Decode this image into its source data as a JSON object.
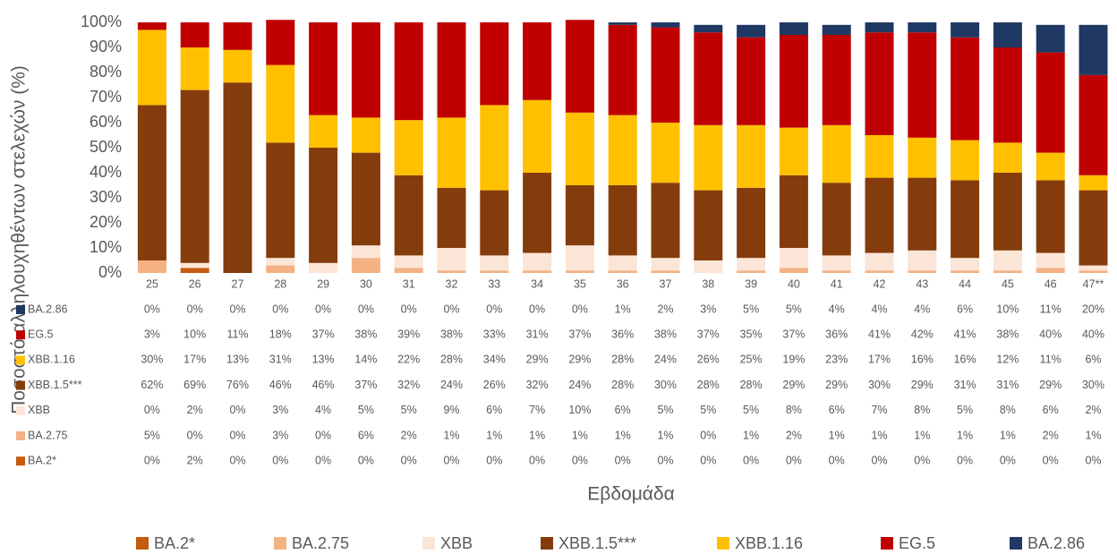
{
  "chart_data": {
    "type": "stacked-bar",
    "y_axis_label": "Ποσοστό αλληλουχηθέντων στελεχών (%)",
    "x_axis_label": "Εβδομάδα",
    "categories": [
      "25",
      "26",
      "27",
      "28",
      "29",
      "30",
      "31",
      "32",
      "33",
      "34",
      "35",
      "36",
      "37",
      "38",
      "39",
      "40",
      "41",
      "42",
      "43",
      "44",
      "45",
      "46",
      "47**"
    ],
    "ylim": [
      0,
      100
    ],
    "yticks": [
      {
        "value": 0,
        "label": "0%"
      },
      {
        "value": 10,
        "label": "10%"
      },
      {
        "value": 20,
        "label": "20%"
      },
      {
        "value": 30,
        "label": "30%"
      },
      {
        "value": 40,
        "label": "40%"
      },
      {
        "value": 50,
        "label": "50%"
      },
      {
        "value": 60,
        "label": "60%"
      },
      {
        "value": 70,
        "label": "70%"
      },
      {
        "value": 80,
        "label": "80%"
      },
      {
        "value": 90,
        "label": "90%"
      },
      {
        "value": 100,
        "label": "100%"
      }
    ],
    "series": [
      {
        "name": "BA.2*",
        "color": "#c55a11",
        "values": [
          0,
          2,
          0,
          0,
          0,
          0,
          0,
          0,
          0,
          0,
          0,
          0,
          0,
          0,
          0,
          0,
          0,
          0,
          0,
          0,
          0,
          0,
          0
        ],
        "value_labels": [
          "0%",
          "2%",
          "0%",
          "0%",
          "0%",
          "0%",
          "0%",
          "0%",
          "0%",
          "0%",
          "0%",
          "0%",
          "0%",
          "0%",
          "0%",
          "0%",
          "0%",
          "0%",
          "0%",
          "0%",
          "0%",
          "0%",
          "0%"
        ]
      },
      {
        "name": "BA.2.75",
        "color": "#f4b183",
        "values": [
          5,
          0,
          0,
          3,
          0,
          6,
          2,
          1,
          1,
          1,
          1,
          1,
          1,
          0,
          1,
          2,
          1,
          1,
          1,
          1,
          1,
          2,
          1
        ],
        "value_labels": [
          "5%",
          "0%",
          "0%",
          "3%",
          "0%",
          "6%",
          "2%",
          "1%",
          "1%",
          "1%",
          "1%",
          "1%",
          "1%",
          "0%",
          "1%",
          "2%",
          "1%",
          "1%",
          "1%",
          "1%",
          "1%",
          "2%",
          "1%"
        ]
      },
      {
        "name": "XBB",
        "color": "#fbe5d6",
        "values": [
          0,
          2,
          0,
          3,
          4,
          5,
          5,
          9,
          6,
          7,
          10,
          6,
          5,
          5,
          5,
          8,
          6,
          7,
          8,
          5,
          8,
          6,
          2
        ],
        "value_labels": [
          "0%",
          "2%",
          "0%",
          "3%",
          "4%",
          "5%",
          "5%",
          "9%",
          "6%",
          "7%",
          "10%",
          "6%",
          "5%",
          "5%",
          "5%",
          "8%",
          "6%",
          "7%",
          "8%",
          "5%",
          "8%",
          "6%",
          "2%"
        ]
      },
      {
        "name": "XBB.1.5***",
        "color": "#843c0c",
        "values": [
          62,
          69,
          76,
          46,
          46,
          37,
          32,
          24,
          26,
          32,
          24,
          28,
          30,
          28,
          28,
          29,
          29,
          30,
          29,
          31,
          31,
          29,
          30
        ],
        "value_labels": [
          "62%",
          "69%",
          "76%",
          "46%",
          "46%",
          "37%",
          "32%",
          "24%",
          "26%",
          "32%",
          "24%",
          "28%",
          "30%",
          "28%",
          "28%",
          "29%",
          "29%",
          "30%",
          "29%",
          "31%",
          "31%",
          "29%",
          "30%"
        ]
      },
      {
        "name": "XBB.1.16",
        "color": "#ffc000",
        "values": [
          30,
          17,
          13,
          31,
          13,
          14,
          22,
          28,
          34,
          29,
          29,
          28,
          24,
          26,
          25,
          19,
          23,
          17,
          16,
          16,
          12,
          11,
          6
        ],
        "value_labels": [
          "30%",
          "17%",
          "13%",
          "31%",
          "13%",
          "14%",
          "22%",
          "28%",
          "34%",
          "29%",
          "29%",
          "28%",
          "24%",
          "26%",
          "25%",
          "19%",
          "23%",
          "17%",
          "16%",
          "16%",
          "12%",
          "11%",
          "6%"
        ]
      },
      {
        "name": "EG.5",
        "color": "#c00000",
        "values": [
          3,
          10,
          11,
          18,
          37,
          38,
          39,
          38,
          33,
          31,
          37,
          36,
          38,
          37,
          35,
          37,
          36,
          41,
          42,
          41,
          38,
          40,
          40
        ],
        "value_labels": [
          "3%",
          "10%",
          "11%",
          "18%",
          "37%",
          "38%",
          "39%",
          "38%",
          "33%",
          "31%",
          "37%",
          "36%",
          "38%",
          "37%",
          "35%",
          "37%",
          "36%",
          "41%",
          "42%",
          "41%",
          "38%",
          "40%",
          "40%"
        ]
      },
      {
        "name": "BA.2.86",
        "color": "#1f3864",
        "values": [
          0,
          0,
          0,
          0,
          0,
          0,
          0,
          0,
          0,
          0,
          0,
          1,
          2,
          3,
          5,
          5,
          4,
          4,
          4,
          6,
          10,
          11,
          20
        ],
        "value_labels": [
          "0%",
          "0%",
          "0%",
          "0%",
          "0%",
          "0%",
          "0%",
          "0%",
          "0%",
          "0%",
          "0%",
          "1%",
          "2%",
          "3%",
          "5%",
          "5%",
          "4%",
          "4%",
          "4%",
          "6%",
          "10%",
          "11%",
          "20%"
        ]
      }
    ]
  }
}
